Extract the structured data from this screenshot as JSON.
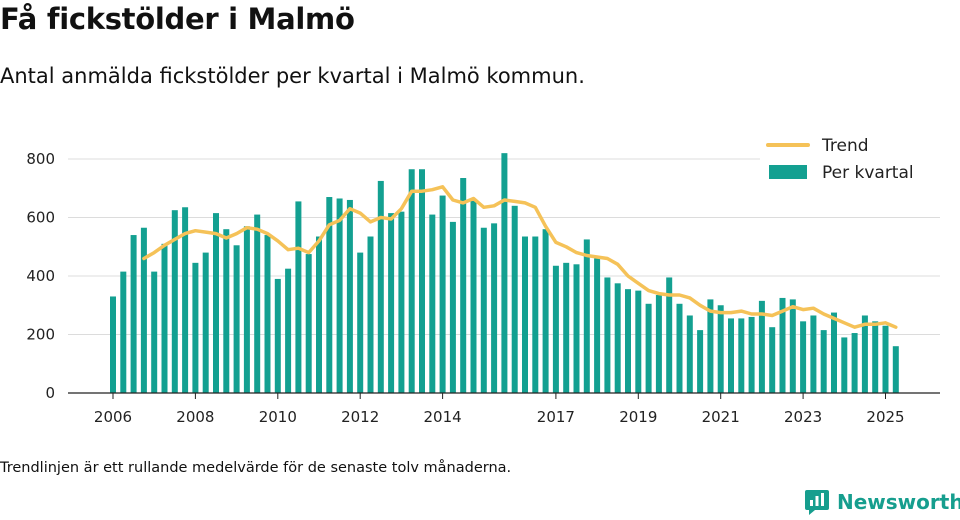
{
  "title": "Få fickstölder i Malmö",
  "subtitle": "Antal anmälda fickstölder per kvartal i Malmö kommun.",
  "footnote": "Trendlinjen är ett rullande medelvärde för de senaste tolv månaderna.",
  "brand": "Newsworthy",
  "colors": {
    "bar": "#13a091",
    "trend": "#f5c258",
    "grid": "#dcdcdc",
    "brand": "#169e8e"
  },
  "chart_data": {
    "type": "bar",
    "title": "",
    "xlabel": "",
    "ylabel": "",
    "ylim": [
      0,
      850
    ],
    "yticks": [
      0,
      200,
      400,
      600,
      800
    ],
    "xticks": [
      "2006",
      "2008",
      "2010",
      "2012",
      "2014",
      "2017",
      "2019",
      "2021",
      "2023",
      "2025"
    ],
    "grid": true,
    "legend_position": "top-right",
    "series": [
      {
        "name": "Per kvartal",
        "type": "bar",
        "values": [
          330,
          415,
          540,
          565,
          415,
          510,
          625,
          635,
          445,
          480,
          615,
          560,
          505,
          570,
          610,
          540,
          390,
          425,
          655,
          475,
          535,
          670,
          665,
          660,
          480,
          535,
          725,
          615,
          620,
          765,
          765,
          610,
          675,
          585,
          735,
          660,
          565,
          580,
          820,
          640,
          535,
          535,
          560,
          435,
          445,
          440,
          525,
          460,
          395,
          375,
          355,
          350,
          305,
          335,
          395,
          305,
          265,
          215,
          320,
          300,
          255,
          255,
          260,
          315,
          225,
          325,
          320,
          245,
          265,
          215,
          275,
          190,
          205,
          265,
          245,
          230,
          160
        ]
      },
      {
        "name": "Trend",
        "type": "line",
        "values": [
          null,
          null,
          null,
          460,
          480,
          505,
          525,
          545,
          555,
          550,
          545,
          530,
          545,
          565,
          560,
          545,
          520,
          490,
          495,
          480,
          520,
          575,
          590,
          630,
          615,
          585,
          600,
          595,
          630,
          690,
          690,
          695,
          705,
          660,
          650,
          665,
          635,
          640,
          660,
          655,
          650,
          635,
          570,
          515,
          500,
          480,
          470,
          465,
          460,
          440,
          400,
          375,
          350,
          340,
          335,
          335,
          325,
          300,
          280,
          275,
          275,
          280,
          270,
          270,
          265,
          280,
          295,
          285,
          290,
          270,
          255,
          240,
          225,
          235,
          235,
          240,
          225
        ]
      }
    ]
  }
}
